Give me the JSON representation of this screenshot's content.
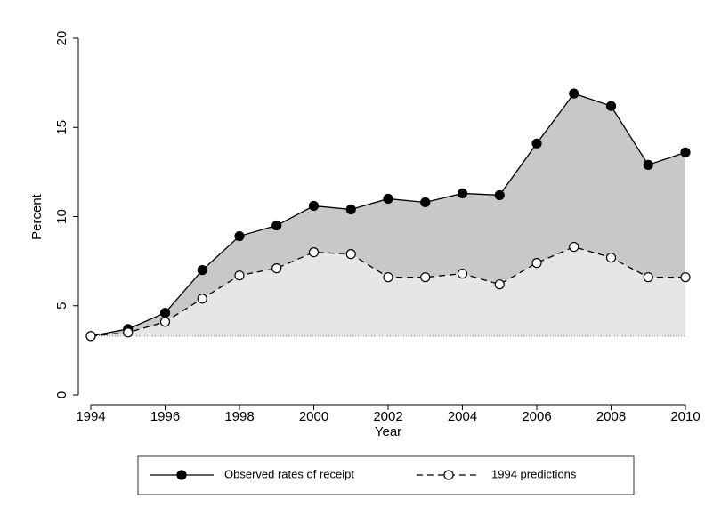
{
  "chart_data": {
    "type": "line",
    "x": [
      1994,
      1995,
      1996,
      1997,
      1998,
      1999,
      2000,
      2001,
      2002,
      2003,
      2004,
      2005,
      2006,
      2007,
      2008,
      2009,
      2010
    ],
    "series": [
      {
        "name": "Observed rates of receipt",
        "color": "#000000",
        "fill": "#c8c8c8",
        "marker": "filled",
        "dash": false,
        "values": [
          3.3,
          3.7,
          4.6,
          7.0,
          8.9,
          9.5,
          10.6,
          10.4,
          11.0,
          10.8,
          11.3,
          11.2,
          14.1,
          16.9,
          16.2,
          12.9,
          13.6
        ]
      },
      {
        "name": "1994 predictions",
        "color": "#000000",
        "fill": "#e6e6e6",
        "marker": "hollow",
        "dash": true,
        "values": [
          3.3,
          3.5,
          4.1,
          5.4,
          6.7,
          7.1,
          8.0,
          7.9,
          6.6,
          6.6,
          6.8,
          6.2,
          7.4,
          8.3,
          7.7,
          6.6,
          6.6
        ]
      }
    ],
    "x_label": "Year",
    "y_label": "Percent",
    "xlim": [
      1994,
      2010
    ],
    "xticks": [
      1994,
      1996,
      1998,
      2000,
      2002,
      2004,
      2006,
      2008,
      2010
    ],
    "ylim": [
      0,
      20
    ],
    "yticks": [
      0,
      5,
      10,
      15,
      20
    ],
    "legend": "bottom"
  }
}
